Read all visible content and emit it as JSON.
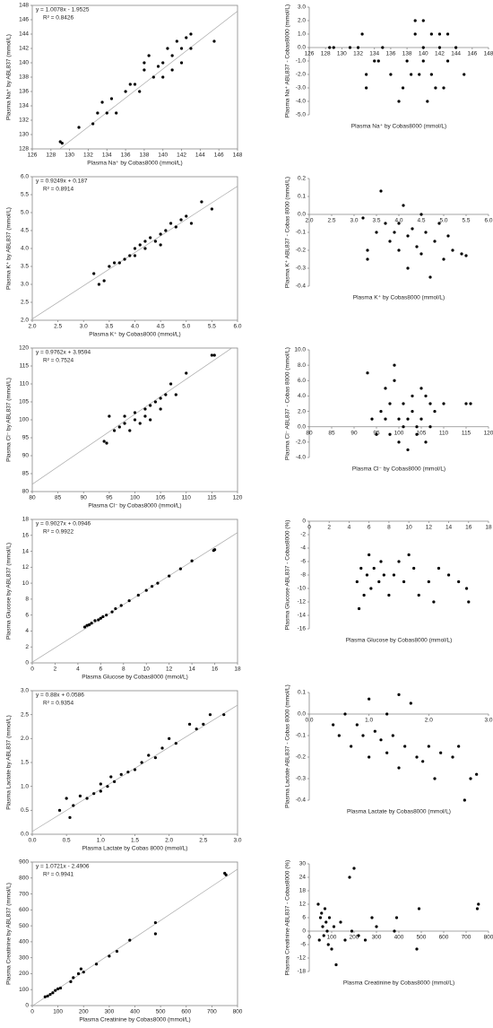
{
  "chart_data": [
    {
      "type": "scatter",
      "ylabel": "Plasma Na⁺ by ABL837 (mmol/L)",
      "xlabel": "Plasma Na⁺ by Cobas8000 (mmol/L)",
      "annotations": [
        "y = 1.0078x - 1.9525",
        "R² = 0.8426"
      ],
      "trendline": {
        "slope": 1.0078,
        "intercept": -1.9525
      },
      "color": "#000000",
      "x": [
        129,
        129.2,
        131,
        132.5,
        133,
        133.5,
        134,
        134.5,
        135,
        136,
        136.5,
        137,
        138,
        138,
        138.5,
        139,
        139.5,
        140,
        140,
        140.5,
        141,
        141,
        141.5,
        142,
        142,
        142.5,
        143,
        143,
        145.5,
        137.5
      ],
      "y": [
        129,
        128.8,
        131,
        131.5,
        133,
        134.5,
        133,
        135,
        133,
        136,
        137,
        137,
        139,
        140,
        141,
        138,
        139.5,
        140,
        138,
        142,
        139,
        141,
        143,
        140,
        142,
        143.5,
        144,
        142,
        143,
        136
      ],
      "xlim": [
        126,
        148
      ],
      "xticks": [
        126,
        128,
        130,
        132,
        134,
        136,
        138,
        140,
        142,
        144,
        146,
        148
      ],
      "ylim": [
        128,
        148
      ],
      "yticks": [
        128,
        130,
        132,
        134,
        136,
        138,
        140,
        142,
        144,
        146,
        148
      ]
    },
    {
      "type": "scatter",
      "ylabel": "Plasma Na⁺ ABL837 - Cobas8000 (mmol/L)",
      "xlabel": "Plasma Na⁺ by Cobas8000 (mmol/L)",
      "x_axis_at_zero": true,
      "color": "#000000",
      "x": [
        128.5,
        129,
        131,
        132,
        132.5,
        133,
        133,
        134,
        134.5,
        135,
        136,
        137,
        137.5,
        138,
        138.5,
        139,
        139,
        139.5,
        140,
        140,
        140,
        140.5,
        141,
        141,
        141.5,
        142,
        142,
        142.5,
        143,
        143,
        144,
        145
      ],
      "y": [
        0,
        0,
        0,
        0,
        1,
        -2,
        -3,
        -1,
        -1,
        0,
        -2,
        -4,
        -3,
        -1,
        -2,
        1,
        2,
        -2,
        0,
        2,
        -1,
        -4,
        -2,
        1,
        -3,
        0,
        1,
        -3,
        1,
        -1,
        0,
        -2
      ],
      "xlim": [
        126,
        148
      ],
      "xticks": [
        126,
        128,
        130,
        132,
        134,
        136,
        138,
        140,
        142,
        144,
        146,
        148
      ],
      "ylim": [
        -5,
        3
      ],
      "yticks": [
        {
          "value": -5,
          "label": "-5.0"
        },
        {
          "value": -4,
          "label": "-4.0"
        },
        {
          "value": -3,
          "label": "-3.0"
        },
        {
          "value": -2,
          "label": "-2.0"
        },
        {
          "value": -1,
          "label": "-1.0"
        },
        {
          "value": 0,
          "label": "0.0"
        },
        {
          "value": 1,
          "label": "1.0"
        },
        {
          "value": 2,
          "label": "2.0"
        },
        {
          "value": 3,
          "label": "3.0"
        }
      ]
    },
    {
      "type": "scatter",
      "ylabel": "Plasma K⁺ by ABL837 (mmol/L)",
      "xlabel": "Plasma K⁺ by Cobas8000 (mmol/L)",
      "annotations": [
        "y = 0.9249x + 0.187",
        "R² = 0.8914"
      ],
      "trendline": {
        "slope": 0.9249,
        "intercept": 0.187
      },
      "color": "#000000",
      "x": [
        3.2,
        3.3,
        3.4,
        3.5,
        3.6,
        3.7,
        3.8,
        3.9,
        4.0,
        4.0,
        4.1,
        4.2,
        4.2,
        4.3,
        4.4,
        4.5,
        4.5,
        4.6,
        4.7,
        4.8,
        4.9,
        5.0,
        5.1,
        5.3,
        5.5
      ],
      "y": [
        3.3,
        3.0,
        3.1,
        3.5,
        3.6,
        3.6,
        3.7,
        3.8,
        4.0,
        3.8,
        4.1,
        4.0,
        4.2,
        4.3,
        4.2,
        4.4,
        4.1,
        4.5,
        4.7,
        4.6,
        4.8,
        4.9,
        4.7,
        5.3,
        5.1
      ],
      "xlim": [
        2,
        6
      ],
      "xticks": [
        {
          "value": 2,
          "label": "2.0"
        },
        2.5,
        {
          "value": 3,
          "label": "3.0"
        },
        3.5,
        {
          "value": 4,
          "label": "4.0"
        },
        4.5,
        {
          "value": 5,
          "label": "5.0"
        },
        5.5,
        {
          "value": 6,
          "label": "6.0"
        }
      ],
      "ylim": [
        2,
        6
      ],
      "yticks": [
        {
          "value": 2,
          "label": "2.0"
        },
        2.5,
        {
          "value": 3,
          "label": "3.0"
        },
        3.5,
        {
          "value": 4,
          "label": "4.0"
        },
        4.5,
        {
          "value": 5,
          "label": "5.0"
        },
        5.5,
        {
          "value": 6,
          "label": "6.0"
        }
      ]
    },
    {
      "type": "scatter",
      "ylabel": "Plasma K⁺ ABL837 - Cobas 8000 (mmol/L)",
      "xlabel": "Plasma K⁺ by Cobas8000 (mmol/L)",
      "x_axis_at_zero": true,
      "color": "#000000",
      "x": [
        3.2,
        3.3,
        3.3,
        3.5,
        3.6,
        3.7,
        3.8,
        3.9,
        4.0,
        4.0,
        4.1,
        4.2,
        4.2,
        4.3,
        4.4,
        4.5,
        4.5,
        4.6,
        4.7,
        4.8,
        4.9,
        5.0,
        5.1,
        5.2,
        5.4,
        5.5
      ],
      "y": [
        -0.02,
        -0.2,
        -0.25,
        -0.1,
        0.13,
        -0.05,
        -0.15,
        -0.1,
        -0.2,
        -0.05,
        0.05,
        -0.12,
        -0.3,
        -0.08,
        -0.18,
        0.0,
        -0.22,
        -0.1,
        -0.35,
        -0.15,
        -0.05,
        -0.25,
        -0.12,
        -0.2,
        -0.22,
        -0.23
      ],
      "xlim": [
        2,
        6
      ],
      "xticks": [
        {
          "value": 2,
          "label": "2.0"
        },
        2.5,
        {
          "value": 3,
          "label": "3.0"
        },
        3.5,
        {
          "value": 4,
          "label": "4.0"
        },
        4.5,
        {
          "value": 5,
          "label": "5.0"
        },
        5.5,
        {
          "value": 6,
          "label": "6.0"
        }
      ],
      "ylim": [
        -0.4,
        0.2
      ],
      "yticks": [
        -0.4,
        -0.3,
        -0.2,
        -0.1,
        {
          "value": 0,
          "label": "0.0"
        },
        0.1,
        0.2
      ]
    },
    {
      "type": "scatter",
      "ylabel": "Plasma Cl⁻ by ABL837 (mmol/L)",
      "xlabel": "Plasma Cl⁻ by Cobas8000 (mmol/L)",
      "annotations": [
        "y = 0.9762x + 3.9594",
        "R² = 0.7524"
      ],
      "trendline": {
        "slope": 0.9762,
        "intercept": 3.9594
      },
      "color": "#000000",
      "x": [
        94,
        94.5,
        95,
        96,
        97,
        98,
        98,
        99,
        100,
        100,
        101,
        102,
        102,
        103,
        103,
        104,
        105,
        105,
        106,
        107,
        108,
        110,
        115,
        115.5
      ],
      "y": [
        94,
        93.5,
        101,
        97,
        98,
        99,
        101,
        97,
        100,
        102,
        99,
        103,
        101,
        104,
        100,
        105,
        106,
        103,
        107,
        110,
        107,
        113,
        118,
        118
      ],
      "xlim": [
        80,
        120
      ],
      "xticks": [
        80,
        85,
        90,
        95,
        100,
        105,
        110,
        115,
        120
      ],
      "ylim": [
        80,
        120
      ],
      "yticks": [
        80,
        85,
        90,
        95,
        100,
        105,
        110,
        115,
        120
      ]
    },
    {
      "type": "scatter",
      "ylabel": "Plasma Cl⁻ ABL837 - Cobas 8000 (mmol/L)",
      "xlabel": "Plasma Cl⁻ by Cobas8000 (mmol/L)",
      "x_axis_at_zero": true,
      "color": "#000000",
      "x": [
        93,
        94,
        95,
        96,
        97,
        97,
        98,
        98,
        99,
        99,
        100,
        100,
        101,
        101,
        102,
        102,
        103,
        103,
        104,
        104,
        105,
        105,
        106,
        106,
        107,
        107,
        108,
        110,
        115,
        116
      ],
      "y": [
        7,
        1,
        -1,
        2,
        1,
        5,
        3,
        -1,
        6,
        8,
        1,
        -2,
        0,
        3,
        1,
        -3,
        4,
        2,
        0,
        -1,
        5,
        1,
        4,
        -2,
        3,
        0,
        2,
        3,
        3,
        3
      ],
      "xlim": [
        80,
        120
      ],
      "xticks": [
        80,
        85,
        90,
        95,
        100,
        105,
        110,
        115,
        120
      ],
      "ylim": [
        -4,
        10
      ],
      "yticks": [
        {
          "value": -4,
          "label": "-4.0"
        },
        {
          "value": -2,
          "label": "-2.0"
        },
        {
          "value": 0,
          "label": "0.0"
        },
        {
          "value": 2,
          "label": "2.0"
        },
        {
          "value": 4,
          "label": "4.0"
        },
        {
          "value": 6,
          "label": "6.0"
        },
        {
          "value": 8,
          "label": "8.0"
        },
        {
          "value": 10,
          "label": "10.0"
        }
      ]
    },
    {
      "type": "scatter",
      "ylabel": "Plasma Glucose by ABL837 (mmol/L)",
      "xlabel": "Plasma Glucose by Cobas8000 (mmol/L)",
      "annotations": [
        "y = 0.9027x + 0.0946",
        "R² = 0.9922"
      ],
      "trendline": {
        "slope": 0.9027,
        "intercept": 0.0946
      },
      "color": "#000000",
      "x": [
        4.6,
        4.8,
        5,
        5.2,
        5.5,
        5.8,
        6,
        6.2,
        6.5,
        7,
        7.3,
        7.8,
        8.5,
        9.3,
        10,
        10.5,
        11,
        12,
        13,
        14,
        15.9,
        16
      ],
      "y": [
        4.5,
        4.7,
        4.8,
        5,
        5.3,
        5.4,
        5.6,
        5.8,
        6,
        6.4,
        6.8,
        7.2,
        7.8,
        8.5,
        9.1,
        9.6,
        10,
        10.9,
        11.8,
        12.8,
        14.1,
        14.2
      ],
      "xlim": [
        0,
        18
      ],
      "xticks": [
        0,
        2,
        4,
        6,
        8,
        10,
        12,
        14,
        16,
        18
      ],
      "ylim": [
        0,
        18
      ],
      "yticks": [
        0,
        2,
        4,
        6,
        8,
        10,
        12,
        14,
        16,
        18
      ]
    },
    {
      "type": "scatter",
      "ylabel": "Plasma Glucose ABL837 - Cobas8000 (%)",
      "xlabel": "Plasma Glucose by Cobas8000 (mmol/L)",
      "x_axis_at_zero": true,
      "color": "#000000",
      "x": [
        4.8,
        5,
        5.2,
        5.5,
        5.8,
        6,
        6.2,
        6.5,
        7,
        7.2,
        7.5,
        8,
        8.5,
        9,
        9.5,
        10,
        10.5,
        11,
        12,
        12.5,
        13,
        14,
        15,
        15.8,
        16
      ],
      "y": [
        -9,
        -13,
        -7,
        -11,
        -8,
        -5,
        -10,
        -7,
        -9,
        -6,
        -8,
        -11,
        -8,
        -6,
        -9,
        -5,
        -7,
        -11,
        -9,
        -12,
        -7,
        -8,
        -9,
        -10,
        -12
      ],
      "xlim": [
        0,
        18
      ],
      "xticks": [
        0,
        2,
        4,
        6,
        8,
        10,
        12,
        14,
        16,
        18
      ],
      "ylim": [
        -16,
        0
      ],
      "yticks": [
        -16,
        -14,
        -12,
        -10,
        -8,
        -6,
        -4,
        -2,
        0
      ]
    },
    {
      "type": "scatter",
      "ylabel": "Plasma Lactate by ABL837 (mmol/L)",
      "xlabel": "Plasma Lactate by Cobas 8000 (mmol/L)",
      "annotations": [
        "y = 0.88x + 0.0586",
        "R² = 0.9354"
      ],
      "trendline": {
        "slope": 0.88,
        "intercept": 0.0586
      },
      "color": "#000000",
      "x": [
        0.4,
        0.5,
        0.55,
        0.6,
        0.7,
        0.8,
        0.9,
        1.0,
        1.0,
        1.1,
        1.15,
        1.2,
        1.3,
        1.4,
        1.5,
        1.6,
        1.7,
        1.8,
        1.9,
        2.0,
        2.1,
        2.3,
        2.4,
        2.5,
        2.6,
        2.8
      ],
      "y": [
        0.5,
        0.75,
        0.35,
        0.6,
        0.8,
        0.75,
        0.85,
        0.9,
        1.05,
        1.0,
        1.2,
        1.1,
        1.25,
        1.3,
        1.35,
        1.5,
        1.65,
        1.6,
        1.8,
        2.0,
        1.9,
        2.3,
        2.2,
        2.3,
        2.5,
        2.5
      ],
      "xlim": [
        0,
        3
      ],
      "xticks": [
        {
          "value": 0,
          "label": "0.0"
        },
        0.5,
        {
          "value": 1,
          "label": "1.0"
        },
        1.5,
        {
          "value": 2,
          "label": "2.0"
        },
        2.5,
        {
          "value": 3,
          "label": "3.0"
        }
      ],
      "ylim": [
        0,
        3
      ],
      "yticks": [
        {
          "value": 0,
          "label": "0.0"
        },
        0.5,
        {
          "value": 1,
          "label": "1.0"
        },
        1.5,
        {
          "value": 2,
          "label": "2.0"
        },
        2.5,
        {
          "value": 3,
          "label": "3.0"
        }
      ]
    },
    {
      "type": "scatter",
      "ylabel": "Plasma Lactate ABL837 - Cobas 8000 (mmol/L)",
      "xlabel": "Plasma Lactate by Cobas8000 (mmol/L)",
      "x_axis_at_zero": true,
      "color": "#000000",
      "x": [
        0.4,
        0.5,
        0.6,
        0.7,
        0.8,
        0.9,
        1.0,
        1.0,
        1.1,
        1.2,
        1.3,
        1.3,
        1.4,
        1.5,
        1.5,
        1.6,
        1.7,
        1.8,
        1.9,
        2.0,
        2.1,
        2.2,
        2.4,
        2.5,
        2.6,
        2.7,
        2.8
      ],
      "y": [
        -0.05,
        -0.1,
        0.0,
        -0.15,
        -0.05,
        -0.1,
        0.07,
        -0.2,
        -0.08,
        -0.12,
        0.0,
        -0.18,
        -0.1,
        0.09,
        -0.25,
        -0.15,
        0.05,
        -0.2,
        -0.22,
        -0.15,
        -0.3,
        -0.18,
        -0.2,
        -0.15,
        -0.4,
        -0.3,
        -0.28
      ],
      "xlim": [
        0,
        3
      ],
      "xticks": [
        {
          "value": 0,
          "label": "0.0"
        },
        {
          "value": 1,
          "label": "1.0"
        },
        {
          "value": 2,
          "label": "2.0"
        },
        {
          "value": 3,
          "label": "3.0"
        }
      ],
      "ylim": [
        -0.4,
        0.1
      ],
      "yticks": [
        -0.4,
        -0.3,
        -0.2,
        -0.1,
        {
          "value": 0,
          "label": "0.0"
        },
        0.1
      ]
    },
    {
      "type": "scatter",
      "ylabel": "Plasma Creatinine by ABL837 (mmol/L)",
      "xlabel": "Plasma Creatinine by Cobas8000 (mmol/L)",
      "annotations": [
        "y = 1.0721x - 2.4906",
        "R² = 0.9941"
      ],
      "trendline": {
        "slope": 1.0721,
        "intercept": -2.4906
      },
      "color": "#000000",
      "x": [
        50,
        60,
        70,
        80,
        90,
        100,
        110,
        150,
        160,
        180,
        190,
        200,
        250,
        300,
        330,
        380,
        480,
        480,
        750,
        755
      ],
      "y": [
        55,
        60,
        70,
        80,
        95,
        105,
        110,
        150,
        175,
        200,
        230,
        210,
        260,
        310,
        340,
        410,
        520,
        450,
        830,
        820
      ],
      "xlim": [
        0,
        800
      ],
      "xticks": [
        0,
        100,
        200,
        300,
        400,
        500,
        600,
        700,
        800
      ],
      "ylim": [
        0,
        900
      ],
      "yticks": [
        0,
        100,
        200,
        300,
        400,
        500,
        600,
        700,
        800,
        900
      ]
    },
    {
      "type": "scatter",
      "ylabel": "Plasma Creatinine ABL837 - Cobas8000 (%)",
      "xlabel": "Plasma Creatinine by Cobas8000 (mmol/L)",
      "x_axis_at_zero": true,
      "color": "#000000",
      "x": [
        40,
        45,
        50,
        55,
        60,
        65,
        70,
        75,
        80,
        85,
        90,
        100,
        110,
        120,
        140,
        160,
        180,
        190,
        200,
        220,
        250,
        280,
        300,
        380,
        390,
        480,
        490,
        750,
        755
      ],
      "y": [
        12,
        -4,
        6,
        8,
        2,
        -2,
        10,
        4,
        0,
        -6,
        6,
        -8,
        2,
        -15,
        4,
        -4,
        24,
        0,
        28,
        -2,
        -4,
        6,
        2,
        0,
        6,
        -8,
        10,
        10,
        12
      ],
      "xlim": [
        0,
        800
      ],
      "xticks": [
        0,
        100,
        200,
        300,
        400,
        500,
        600,
        700,
        800
      ],
      "ylim": [
        -18,
        30
      ],
      "yticks": [
        -18,
        -12,
        -6,
        0,
        6,
        12,
        18,
        24,
        30
      ]
    }
  ]
}
